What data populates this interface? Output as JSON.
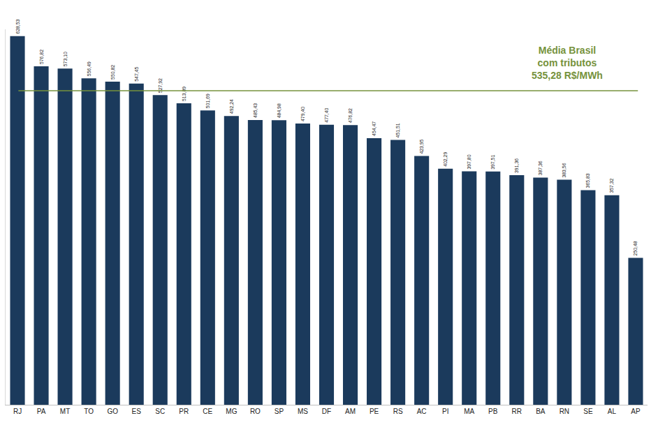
{
  "chart_data": {
    "type": "bar",
    "categories": [
      "RJ",
      "PA",
      "MT",
      "TO",
      "GO",
      "ES",
      "SC",
      "PR",
      "CE",
      "MG",
      "RO",
      "SP",
      "MS",
      "DF",
      "AM",
      "PE",
      "RS",
      "AC",
      "PI",
      "MA",
      "PB",
      "RR",
      "BA",
      "RN",
      "SE",
      "AL",
      "AP"
    ],
    "values": [
      628.53,
      576.82,
      573.1,
      556.49,
      550.82,
      547.45,
      527.92,
      513.89,
      501.69,
      492.24,
      485.43,
      484.98,
      479.4,
      477.4,
      476.82,
      454.47,
      451.51,
      423.95,
      402.29,
      397.8,
      397.51,
      391.36,
      387.36,
      383.56,
      365.83,
      357.32,
      250.48
    ],
    "value_labels": [
      "628,53",
      "576,82",
      "573,10",
      "556,49",
      "550,82",
      "547,45",
      "527,92",
      "513,89",
      "501,69",
      "492,24",
      "485,43",
      "484,98",
      "479,40",
      "477,40",
      "476,82",
      "454,47",
      "451,51",
      "423,95",
      "402,29",
      "397,80",
      "397,51",
      "391,36",
      "387,36",
      "383,56",
      "365,83",
      "357,32",
      "250,48"
    ],
    "color": "#1b3a5c",
    "data_labels": true,
    "tick_labels": "x",
    "grid": false,
    "ylim": [
      0,
      640
    ],
    "reference_line": {
      "value": 535.28,
      "label": [
        "Média Brasil",
        "com tributos",
        "535,28 R$/MWh"
      ],
      "color": "#76923c"
    }
  }
}
